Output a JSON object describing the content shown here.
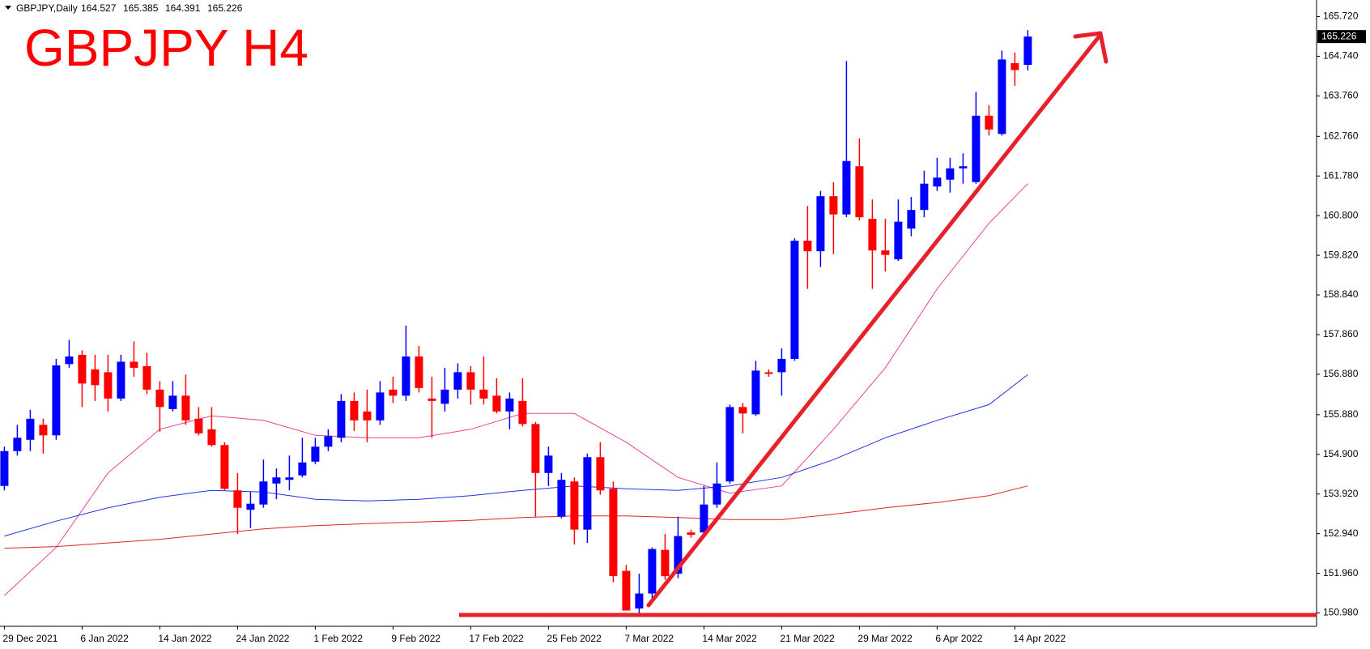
{
  "chart_data": {
    "type": "candlestick",
    "title": "GBPJPY H4",
    "symbol": "GBPJPY,Daily",
    "up_color": "#0000ff",
    "down_color": "#ff0000",
    "categories": [
      "29 Dec 2021",
      null,
      null,
      null,
      null,
      null,
      "6 Jan 2022",
      null,
      null,
      null,
      null,
      null,
      "14 Jan 2022",
      null,
      null,
      null,
      null,
      null,
      "24 Jan 2022",
      null,
      null,
      null,
      null,
      null,
      "1 Feb 2022",
      null,
      null,
      null,
      null,
      null,
      "9 Feb 2022",
      null,
      null,
      null,
      null,
      null,
      "17 Feb 2022",
      null,
      null,
      null,
      null,
      null,
      "25 Feb 2022",
      null,
      null,
      null,
      null,
      null,
      "7 Mar 2022",
      null,
      null,
      null,
      null,
      null,
      "14 Mar 2022",
      null,
      null,
      null,
      null,
      null,
      "21 Mar 2022",
      null,
      null,
      null,
      null,
      null,
      "29 Mar 2022",
      null,
      null,
      null,
      null,
      null,
      "6 Apr 2022",
      null,
      null,
      null,
      null,
      null,
      "14 Apr 2022",
      null
    ],
    "open": [
      154.12,
      154.98,
      155.26,
      155.63,
      155.37,
      157.13,
      157.36,
      157.0,
      156.93,
      156.28,
      157.19,
      157.08,
      156.5,
      156.02,
      156.35,
      155.78,
      155.52,
      155.13,
      154.01,
      153.53,
      153.66,
      154.18,
      154.27,
      154.38,
      154.72,
      155.09,
      155.31,
      156.22,
      155.96,
      155.74,
      156.5,
      156.35,
      157.32,
      156.28,
      156.15,
      156.5,
      156.93,
      156.5,
      156.35,
      155.96,
      156.22,
      155.65,
      154.44,
      153.36,
      154.23,
      153.04,
      154.83,
      154.05,
      152.02,
      151.09,
      151.46,
      152.54,
      151.95,
      152.97,
      152.97,
      153.66,
      154.23,
      156.07,
      155.89,
      156.93,
      156.93,
      157.26,
      160.18,
      159.92,
      161.28,
      160.83,
      162.02,
      160.72,
      159.94,
      159.72,
      160.48,
      160.94,
      161.52,
      161.69,
      161.97,
      161.63,
      163.27,
      162.82,
      164.57,
      164.527
    ],
    "high": [
      155.09,
      155.63,
      156.0,
      155.78,
      157.26,
      157.73,
      157.47,
      157.36,
      157.36,
      157.36,
      157.69,
      157.41,
      156.71,
      156.71,
      156.87,
      156.07,
      156.07,
      155.2,
      154.44,
      153.97,
      154.77,
      154.55,
      154.87,
      155.31,
      155.31,
      155.52,
      156.39,
      156.43,
      156.5,
      156.71,
      156.82,
      158.08,
      157.58,
      156.82,
      157.04,
      157.15,
      157.08,
      157.32,
      156.78,
      156.43,
      156.78,
      155.7,
      155.09,
      154.44,
      154.33,
      154.92,
      155.2,
      154.23,
      152.17,
      151.95,
      152.6,
      152.93,
      153.36,
      153.04,
      154.12,
      154.7,
      156.13,
      156.17,
      157.21,
      157.0,
      157.52,
      160.24,
      161.04,
      161.41,
      161.63,
      164.62,
      162.71,
      161.2,
      160.72,
      161.2,
      161.26,
      161.91,
      162.23,
      162.23,
      162.34,
      163.86,
      163.53,
      164.88,
      164.83,
      165.385
    ],
    "low": [
      154.01,
      154.87,
      154.98,
      154.92,
      155.26,
      157.04,
      156.07,
      156.22,
      155.96,
      156.22,
      156.82,
      156.39,
      155.46,
      155.96,
      155.63,
      155.37,
      155.09,
      154.01,
      152.93,
      153.08,
      153.58,
      153.79,
      154.01,
      154.33,
      154.66,
      154.98,
      155.2,
      155.48,
      155.2,
      155.63,
      156.17,
      156.22,
      156.43,
      155.31,
      155.96,
      156.28,
      156.13,
      156.13,
      155.91,
      155.52,
      155.59,
      153.36,
      154.12,
      153.32,
      152.67,
      152.71,
      153.9,
      151.74,
      151.04,
      150.98,
      151.35,
      151.8,
      151.84,
      152.84,
      152.93,
      153.58,
      154.18,
      155.42,
      155.85,
      156.82,
      156.35,
      157.21,
      158.99,
      159.53,
      159.85,
      160.76,
      160.68,
      158.99,
      159.42,
      159.68,
      160.29,
      160.76,
      161.41,
      161.37,
      161.59,
      161.59,
      162.78,
      162.78,
      164.01,
      164.391
    ],
    "close": [
      154.98,
      155.31,
      155.78,
      155.37,
      157.1,
      157.32,
      156.65,
      156.61,
      156.28,
      157.19,
      157.04,
      156.5,
      156.07,
      156.35,
      155.74,
      155.42,
      155.13,
      154.05,
      153.58,
      153.68,
      154.23,
      154.33,
      154.33,
      154.7,
      155.09,
      155.35,
      156.22,
      155.74,
      155.74,
      156.43,
      156.35,
      157.32,
      156.54,
      156.22,
      156.5,
      156.93,
      156.5,
      156.28,
      155.96,
      156.28,
      155.65,
      154.44,
      154.87,
      154.27,
      153.04,
      154.83,
      154.01,
      151.89,
      151.04,
      151.46,
      152.56,
      151.89,
      152.88,
      152.91,
      153.66,
      154.18,
      156.07,
      155.91,
      156.97,
      156.89,
      157.26,
      160.18,
      159.92,
      161.28,
      160.83,
      162.15,
      160.76,
      159.94,
      159.83,
      160.65,
      160.94,
      161.59,
      161.74,
      161.97,
      162.02,
      163.27,
      162.93,
      164.66,
      164.4,
      165.226
    ],
    "lines": [
      {
        "color": "#e8409c",
        "x": [
          0,
          4,
          8,
          12,
          16,
          20,
          24,
          28,
          32,
          36,
          40,
          44,
          48,
          52,
          56,
          60,
          64,
          68,
          72,
          76,
          79
        ],
        "values": [
          151.41,
          152.6,
          154.44,
          155.52,
          155.85,
          155.74,
          155.37,
          155.31,
          155.31,
          155.52,
          155.91,
          155.91,
          155.2,
          154.33,
          153.94,
          154.12,
          155.52,
          157.04,
          158.99,
          160.61,
          161.59
        ]
      },
      {
        "color": "#1f32e0",
        "x": [
          0,
          4,
          8,
          12,
          16,
          20,
          24,
          28,
          32,
          36,
          40,
          44,
          48,
          52,
          56,
          60,
          64,
          68,
          72,
          76,
          79
        ],
        "values": [
          152.88,
          153.25,
          153.58,
          153.84,
          154.01,
          153.97,
          153.79,
          153.75,
          153.79,
          153.88,
          154.01,
          154.12,
          154.05,
          154.01,
          154.12,
          154.33,
          154.77,
          155.31,
          155.74,
          156.13,
          156.87
        ]
      },
      {
        "color": "#e02424",
        "x": [
          0,
          4,
          8,
          12,
          16,
          20,
          24,
          28,
          32,
          36,
          40,
          44,
          48,
          52,
          56,
          60,
          64,
          68,
          72,
          76,
          79
        ],
        "values": [
          152.58,
          152.62,
          152.71,
          152.8,
          152.93,
          153.06,
          153.14,
          153.19,
          153.23,
          153.27,
          153.34,
          153.38,
          153.38,
          153.34,
          153.29,
          153.29,
          153.42,
          153.58,
          153.71,
          153.88,
          154.12
        ]
      }
    ],
    "ylim": [
      150.65,
      166.13
    ],
    "yticks": [
      {
        "value": 165.72,
        "label": "165.720"
      },
      {
        "value": 164.74,
        "label": "164.740"
      },
      {
        "value": 163.76,
        "label": "163.760"
      },
      {
        "value": 162.76,
        "label": "162.760"
      },
      {
        "value": 161.78,
        "label": "161.780"
      },
      {
        "value": 160.8,
        "label": "160.800"
      },
      {
        "value": 159.82,
        "label": "159.820"
      },
      {
        "value": 158.84,
        "label": "158.840"
      },
      {
        "value": 157.86,
        "label": "157.860"
      },
      {
        "value": 156.88,
        "label": "156.880"
      },
      {
        "value": 155.88,
        "label": "155.880"
      },
      {
        "value": 154.9,
        "label": "154.900"
      },
      {
        "value": 153.92,
        "label": "153.920"
      },
      {
        "value": 152.94,
        "label": "152.940"
      },
      {
        "value": 151.96,
        "label": "151.960"
      },
      {
        "value": 150.98,
        "label": "150.980"
      }
    ]
  }
}
